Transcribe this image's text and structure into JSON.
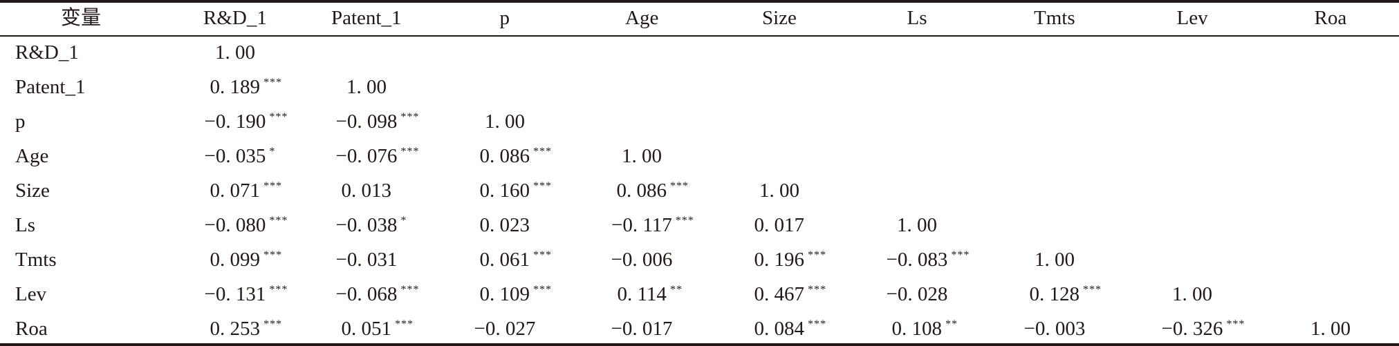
{
  "table": {
    "columns": [
      "变量",
      "R&D_1",
      "Patent_1",
      "p",
      "Age",
      "Size",
      "Ls",
      "Tmts",
      "Lev",
      "Roa"
    ],
    "rows": [
      {
        "label": "R&D_1",
        "cells": [
          {
            "v": "1. 00",
            "s": ""
          }
        ]
      },
      {
        "label": "Patent_1",
        "cells": [
          {
            "v": "0. 189",
            "s": "***"
          },
          {
            "v": "1. 00",
            "s": ""
          }
        ]
      },
      {
        "label": "p",
        "cells": [
          {
            "v": "−0. 190",
            "s": "***"
          },
          {
            "v": "−0. 098",
            "s": "***"
          },
          {
            "v": "1. 00",
            "s": ""
          }
        ]
      },
      {
        "label": "Age",
        "cells": [
          {
            "v": "−0. 035",
            "s": "*"
          },
          {
            "v": "−0. 076",
            "s": "***"
          },
          {
            "v": "0. 086",
            "s": "***"
          },
          {
            "v": "1. 00",
            "s": ""
          }
        ]
      },
      {
        "label": "Size",
        "cells": [
          {
            "v": "0. 071",
            "s": "***"
          },
          {
            "v": "0. 013",
            "s": ""
          },
          {
            "v": "0. 160",
            "s": "***"
          },
          {
            "v": "0. 086",
            "s": "***"
          },
          {
            "v": "1. 00",
            "s": ""
          }
        ]
      },
      {
        "label": "Ls",
        "cells": [
          {
            "v": "−0. 080",
            "s": "***"
          },
          {
            "v": "−0. 038",
            "s": "*"
          },
          {
            "v": "0. 023",
            "s": ""
          },
          {
            "v": "−0. 117",
            "s": "***"
          },
          {
            "v": "0. 017",
            "s": ""
          },
          {
            "v": "1. 00",
            "s": ""
          }
        ]
      },
      {
        "label": "Tmts",
        "cells": [
          {
            "v": "0. 099",
            "s": "***"
          },
          {
            "v": "−0. 031",
            "s": ""
          },
          {
            "v": "0. 061",
            "s": "***"
          },
          {
            "v": "−0. 006",
            "s": ""
          },
          {
            "v": "0. 196",
            "s": "***"
          },
          {
            "v": "−0. 083",
            "s": "***"
          },
          {
            "v": "1. 00",
            "s": ""
          }
        ]
      },
      {
        "label": "Lev",
        "cells": [
          {
            "v": "−0. 131",
            "s": "***"
          },
          {
            "v": "−0. 068",
            "s": "***"
          },
          {
            "v": "0. 109",
            "s": "***"
          },
          {
            "v": "0. 114",
            "s": "**"
          },
          {
            "v": "0. 467",
            "s": "***"
          },
          {
            "v": "−0. 028",
            "s": ""
          },
          {
            "v": "0. 128",
            "s": "***"
          },
          {
            "v": "1. 00",
            "s": ""
          }
        ]
      },
      {
        "label": "Roa",
        "cells": [
          {
            "v": "0. 253",
            "s": "***"
          },
          {
            "v": "0. 051",
            "s": "***"
          },
          {
            "v": "−0. 027",
            "s": ""
          },
          {
            "v": "−0. 017",
            "s": ""
          },
          {
            "v": "0. 084",
            "s": "***"
          },
          {
            "v": "0. 108",
            "s": "**"
          },
          {
            "v": "−0. 003",
            "s": ""
          },
          {
            "v": "−0. 326",
            "s": "***"
          },
          {
            "v": "1. 00",
            "s": ""
          }
        ]
      }
    ]
  }
}
